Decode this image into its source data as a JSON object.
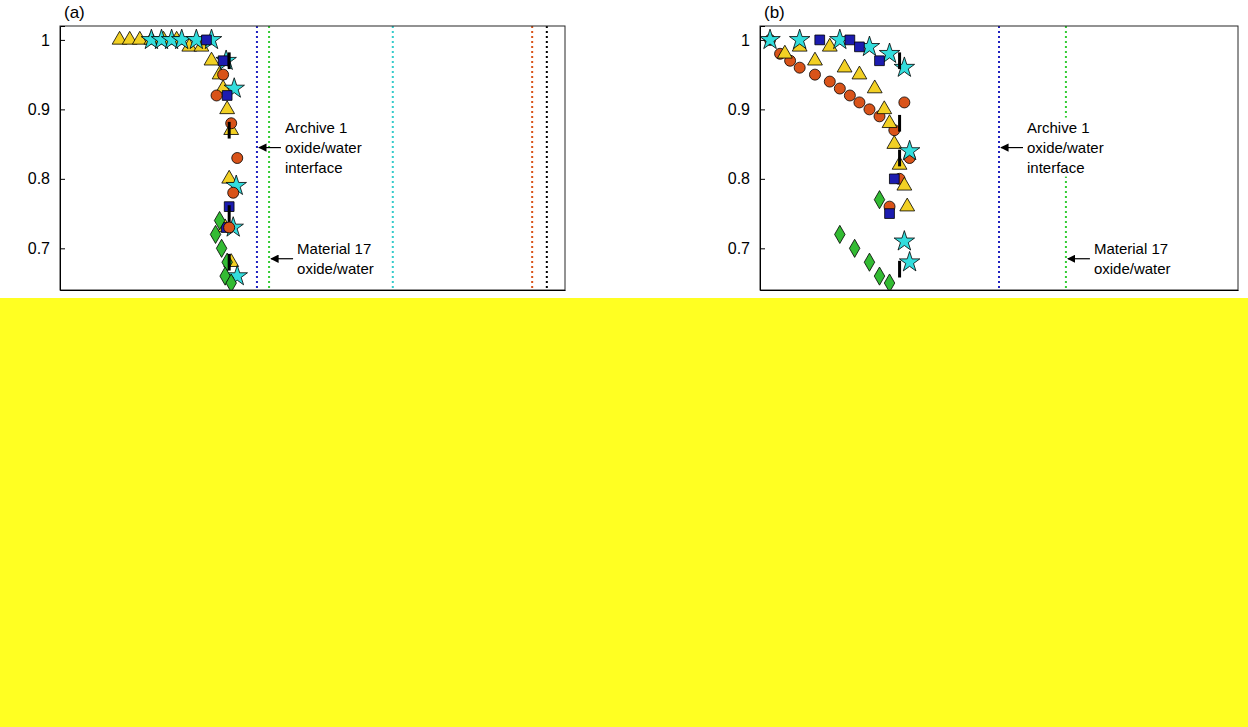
{
  "chart_data": [
    {
      "type": "scatter",
      "title": "(a)",
      "xlim": [
        0,
        100
      ],
      "ylim": [
        0.64,
        1.02
      ],
      "yticks": [
        0.7,
        0.8,
        0.9,
        1
      ],
      "tick_labels": "y",
      "series": [
        {
          "color": "#f2d024",
          "marker": "triangle",
          "x": [
            11.8,
            13.8,
            15.8,
            18.1,
            20.5,
            23.1,
            25.6,
            28,
            30,
            31.6,
            32.3,
            33.1,
            33.9,
            33.5,
            32.7,
            33.9
          ],
          "values": [
            1,
            1,
            1,
            1,
            1,
            1,
            0.99,
            0.99,
            0.97,
            0.95,
            0.93,
            0.9,
            0.87,
            0.8,
            0.73,
            0.68
          ]
        },
        {
          "color": "#33dddd",
          "marker": "star",
          "x": [
            18.1,
            20.1,
            22.1,
            24.1,
            27,
            30,
            32.9,
            34.5,
            34.9,
            34.3,
            35.1
          ],
          "values": [
            1,
            1,
            1,
            1,
            1,
            1,
            0.97,
            0.93,
            0.79,
            0.73,
            0.66
          ]
        },
        {
          "color": "#1c1cb0",
          "marker": "square",
          "x": [
            29,
            32.3,
            33.1,
            33.5,
            32.9
          ],
          "values": [
            1,
            0.97,
            0.92,
            0.76,
            0.73
          ]
        },
        {
          "color": "#d95319",
          "marker": "circle",
          "x": [
            31,
            32.3,
            33.9,
            35.1,
            34.3,
            33.5
          ],
          "values": [
            0.92,
            0.95,
            0.88,
            0.83,
            0.78,
            0.73
          ]
        },
        {
          "color": "#33bb33",
          "marker": "diamond",
          "x": [
            30.8,
            32,
            33.1,
            32.7,
            33.9,
            31.6
          ],
          "values": [
            0.72,
            0.7,
            0.68,
            0.66,
            0.65,
            0.74
          ]
        },
        {
          "color": "#000000",
          "marker": "none",
          "x": [
            33.5,
            33.5,
            33.5,
            33.5
          ],
          "values": [
            0.97,
            0.87,
            0.75,
            0.68
          ],
          "errors": [
            0.012,
            0.012,
            0.012,
            0.012
          ]
        }
      ],
      "vlines": [
        {
          "x": 39,
          "color": "#2020c0",
          "line_style": "dotted"
        },
        {
          "x": 41.4,
          "color": "#33cc33",
          "line_style": "dotted"
        },
        {
          "x": 65.9,
          "color": "#33cccc",
          "line_style": "dotted"
        },
        {
          "x": 93.5,
          "color": "#d95319",
          "line_style": "dotted"
        },
        {
          "x": 96.4,
          "color": "#000000",
          "line_style": "dotted"
        }
      ],
      "annotations": [
        {
          "text": "Archive 1 oxide/water interface",
          "x": 39,
          "y": 0.845
        },
        {
          "text": "Material 17 oxide/water",
          "x": 41.4,
          "y": 0.685
        }
      ]
    },
    {
      "type": "scatter",
      "title": "(b)",
      "xlim": [
        0,
        100
      ],
      "ylim": [
        0.64,
        1.02
      ],
      "yticks": [
        0.7,
        0.8,
        0.9,
        1
      ],
      "tick_labels": "y",
      "series": [
        {
          "color": "#d95319",
          "marker": "circle",
          "x": [
            2.1,
            4.2,
            6.3,
            8.3,
            11.5,
            14.6,
            16.7,
            18.8,
            20.8,
            22.9,
            25,
            28.1,
            30.2,
            31.3,
            29.2,
            27.1
          ],
          "values": [
            1,
            0.98,
            0.97,
            0.96,
            0.95,
            0.94,
            0.93,
            0.92,
            0.91,
            0.9,
            0.89,
            0.87,
            0.91,
            0.83,
            0.8,
            0.76
          ]
        },
        {
          "color": "#f2d024",
          "marker": "triangle",
          "x": [
            5.2,
            8.3,
            11.5,
            14.6,
            17.7,
            20.8,
            24,
            26,
            27.1,
            28.1,
            29.2,
            30.2,
            30.8
          ],
          "values": [
            0.98,
            0.99,
            0.97,
            0.99,
            0.96,
            0.95,
            0.93,
            0.9,
            0.88,
            0.85,
            0.82,
            0.79,
            0.76
          ]
        },
        {
          "color": "#33dddd",
          "marker": "star",
          "x": [
            2.1,
            8.3,
            16.7,
            22.9,
            27.1,
            30.2,
            31.3,
            30.2,
            31.3
          ],
          "values": [
            1,
            1,
            1,
            0.99,
            0.98,
            0.96,
            0.84,
            0.71,
            0.68
          ]
        },
        {
          "color": "#1c1cb0",
          "marker": "square",
          "x": [
            12.5,
            18.8,
            20.8,
            25,
            28.1,
            27.1
          ],
          "values": [
            1,
            1,
            0.99,
            0.97,
            0.8,
            0.75
          ]
        },
        {
          "color": "#33bb33",
          "marker": "diamond",
          "x": [
            16.7,
            19.8,
            22.9,
            25,
            27.1,
            25
          ],
          "values": [
            0.72,
            0.7,
            0.68,
            0.66,
            0.65,
            0.77
          ]
        },
        {
          "color": "#000000",
          "marker": "none",
          "x": [
            29.2,
            29.2,
            29.2,
            29.2
          ],
          "values": [
            0.97,
            0.88,
            0.83,
            0.67
          ],
          "errors": [
            0.012,
            0.012,
            0.012,
            0.012
          ]
        }
      ],
      "vlines": [
        {
          "x": 50,
          "color": "#2020c0",
          "line_style": "dotted"
        },
        {
          "x": 64,
          "color": "#33cc33",
          "line_style": "dotted"
        }
      ],
      "annotations": [
        {
          "text": "Archive 1 oxide/water interface",
          "x": 50,
          "y": 0.845
        },
        {
          "text": "Material 17 oxide/water",
          "x": 64,
          "y": 0.685
        }
      ]
    }
  ]
}
